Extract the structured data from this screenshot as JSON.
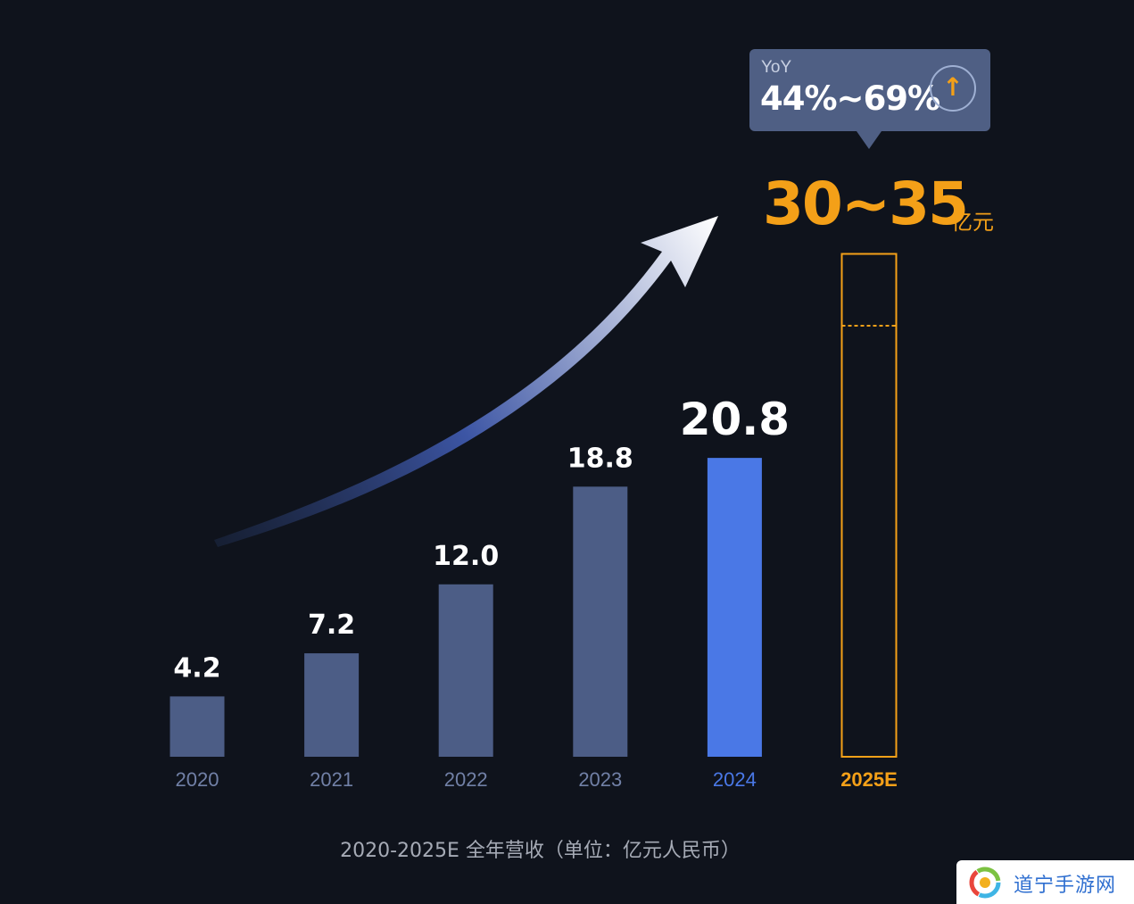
{
  "chart_data": {
    "type": "bar",
    "categories": [
      "2020",
      "2021",
      "2022",
      "2023",
      "2024",
      "2025E"
    ],
    "values": [
      4.2,
      7.2,
      12.0,
      18.8,
      20.8,
      null
    ],
    "value_labels": [
      "4.2",
      "7.2",
      "12.0",
      "18.8",
      "20.8",
      ""
    ],
    "forecast": {
      "category": "2025E",
      "low": 30,
      "high": 35,
      "label": "30~35",
      "unit": "亿元"
    },
    "yoy": {
      "title": "YoY",
      "value": "44%~69%",
      "icon": "up-arrow-icon"
    },
    "caption": "2020-2025E 全年营收（单位：亿元人民币）",
    "colors": {
      "bar": "#4c5d86",
      "highlight": "#4a78e6",
      "forecast": "#f4a018",
      "category_label": "#7180a6"
    },
    "ylim": [
      0,
      40
    ]
  },
  "watermark": {
    "text": "道宁手游网",
    "icon": "swirl-logo-icon"
  }
}
